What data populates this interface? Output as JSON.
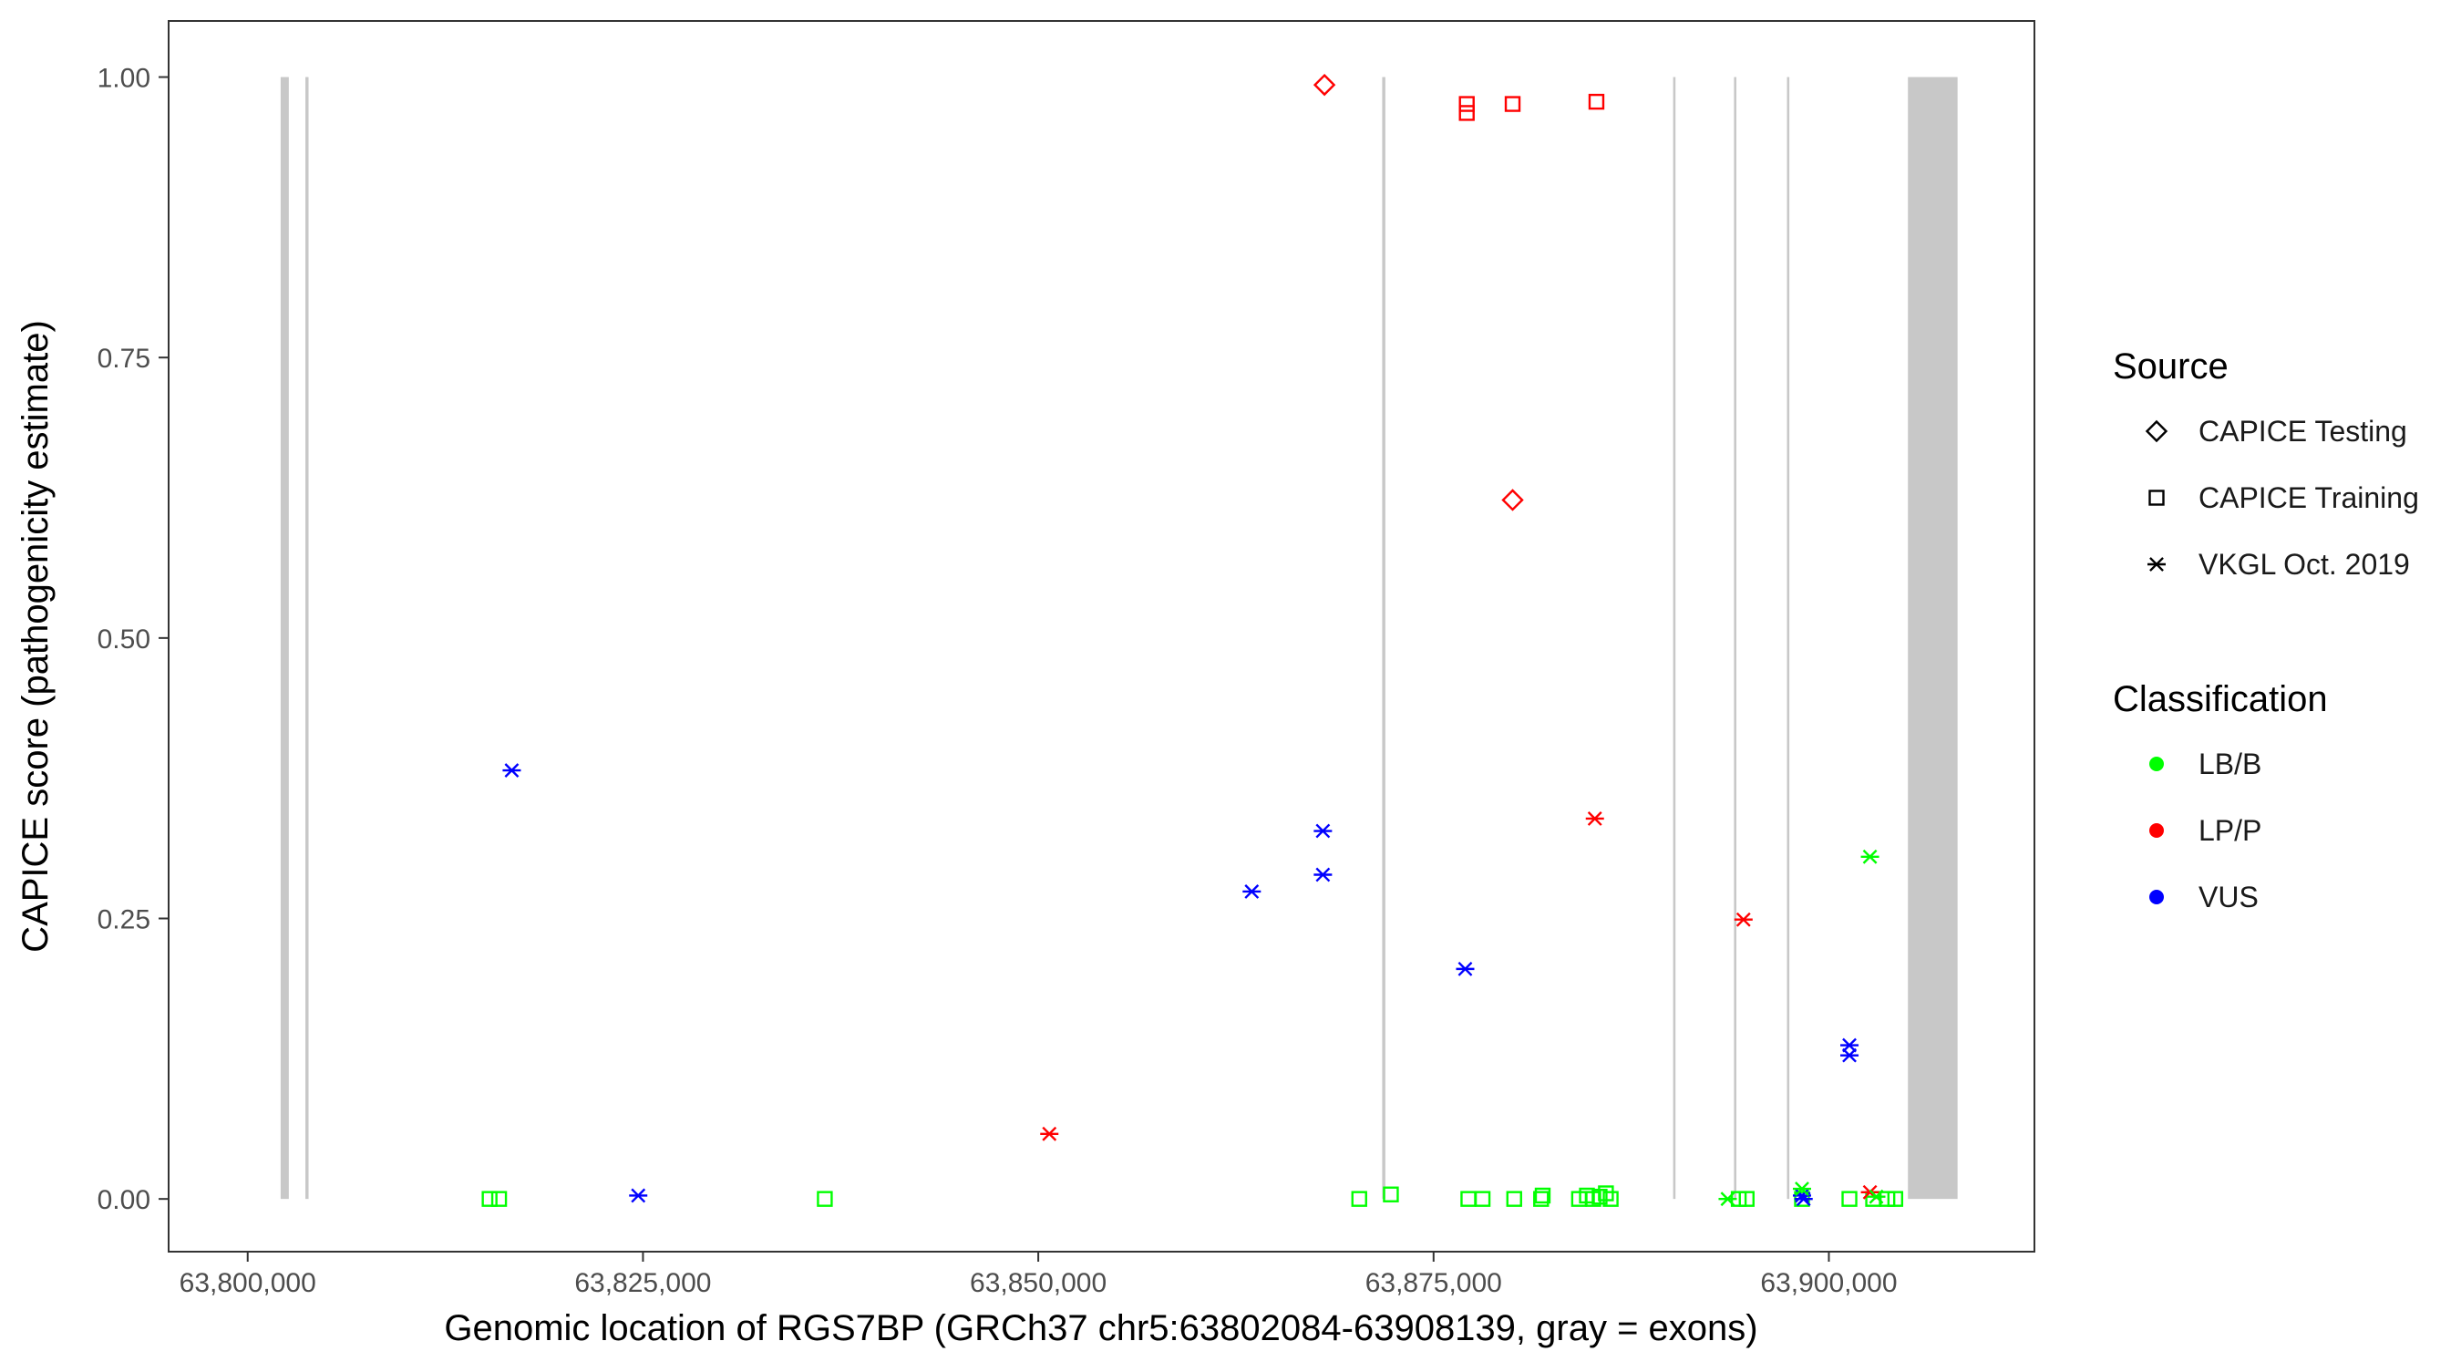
{
  "chart_data": {
    "type": "scatter",
    "title": "",
    "xlabel": "Genomic location of RGS7BP (GRCh37 chr5:63802084-63908139, gray = exons)",
    "ylabel": "CAPICE score (pathogenicity estimate)",
    "xlim": [
      63795000,
      63913000
    ],
    "ylim": [
      -0.047,
      1.05
    ],
    "x_ticks": [
      63800000,
      63825000,
      63850000,
      63875000,
      63900000
    ],
    "x_tick_labels": [
      "63,800,000",
      "63,825,000",
      "63,850,000",
      "63,875,000",
      "63,900,000"
    ],
    "y_ticks": [
      0,
      0.25,
      0.5,
      0.75,
      1.0
    ],
    "y_tick_labels": [
      "0.00",
      "0.25",
      "0.50",
      "0.75",
      "1.00"
    ],
    "grid": false,
    "legend_position": "right",
    "exons": [
      {
        "start": 63802084,
        "end": 63802600
      },
      {
        "start": 63803650,
        "end": 63803850
      },
      {
        "start": 63871750,
        "end": 63871950
      },
      {
        "start": 63890150,
        "end": 63890300
      },
      {
        "start": 63894000,
        "end": 63894150
      },
      {
        "start": 63897350,
        "end": 63897500
      },
      {
        "start": 63905000,
        "end": 63908139
      }
    ],
    "legends": {
      "source": {
        "title": "Source",
        "items": [
          {
            "label": "CAPICE Testing",
            "shape": "diamond"
          },
          {
            "label": "CAPICE Training",
            "shape": "square"
          },
          {
            "label": "VKGL Oct. 2019",
            "shape": "asterisk"
          }
        ]
      },
      "classification": {
        "title": "Classification",
        "items": [
          {
            "label": "LB/B",
            "color": "#00ff00"
          },
          {
            "label": "LP/P",
            "color": "#ff0000"
          },
          {
            "label": "VUS",
            "color": "#0000ff"
          }
        ]
      }
    },
    "colors": {
      "LB/B": "#00ff00",
      "LP/P": "#ff0000",
      "VUS": "#0000ff",
      "exon": "#c8c8c8"
    },
    "series": [
      {
        "name": "CAPICE Testing",
        "shape": "diamond",
        "points": [
          {
            "x": 63868100,
            "y": 0.993,
            "cls": "LP/P"
          },
          {
            "x": 63880000,
            "y": 0.623,
            "cls": "LP/P"
          }
        ]
      },
      {
        "name": "CAPICE Training",
        "shape": "square",
        "points": [
          {
            "x": 63877100,
            "y": 0.976,
            "cls": "LP/P"
          },
          {
            "x": 63877100,
            "y": 0.968,
            "cls": "LP/P"
          },
          {
            "x": 63880000,
            "y": 0.976,
            "cls": "LP/P"
          },
          {
            "x": 63885300,
            "y": 0.978,
            "cls": "LP/P"
          },
          {
            "x": 63815300,
            "y": 0.0,
            "cls": "LB/B"
          },
          {
            "x": 63815900,
            "y": 0.0,
            "cls": "LB/B"
          },
          {
            "x": 63836500,
            "y": 0.0,
            "cls": "LB/B"
          },
          {
            "x": 63870300,
            "y": 0.0,
            "cls": "LB/B"
          },
          {
            "x": 63872300,
            "y": 0.004,
            "cls": "LB/B"
          },
          {
            "x": 63877200,
            "y": 0.0,
            "cls": "LB/B"
          },
          {
            "x": 63878100,
            "y": 0.0,
            "cls": "LB/B"
          },
          {
            "x": 63880100,
            "y": 0.0,
            "cls": "LB/B"
          },
          {
            "x": 63881800,
            "y": 0.0,
            "cls": "LB/B"
          },
          {
            "x": 63881900,
            "y": 0.003,
            "cls": "LB/B"
          },
          {
            "x": 63884200,
            "y": 0.0,
            "cls": "LB/B"
          },
          {
            "x": 63884700,
            "y": 0.003,
            "cls": "LB/B"
          },
          {
            "x": 63885100,
            "y": 0.0,
            "cls": "LB/B"
          },
          {
            "x": 63885500,
            "y": 0.002,
            "cls": "LB/B"
          },
          {
            "x": 63885900,
            "y": 0.005,
            "cls": "LB/B"
          },
          {
            "x": 63886200,
            "y": 0.0,
            "cls": "LB/B"
          },
          {
            "x": 63894300,
            "y": 0.0,
            "cls": "LB/B"
          },
          {
            "x": 63894800,
            "y": 0.0,
            "cls": "LB/B"
          },
          {
            "x": 63898300,
            "y": 0.0,
            "cls": "LB/B"
          },
          {
            "x": 63901300,
            "y": 0.0,
            "cls": "LB/B"
          },
          {
            "x": 63902800,
            "y": 0.0,
            "cls": "LB/B"
          },
          {
            "x": 63903700,
            "y": 0.0,
            "cls": "LB/B"
          },
          {
            "x": 63904200,
            "y": 0.0,
            "cls": "LB/B"
          }
        ]
      },
      {
        "name": "VKGL Oct. 2019",
        "shape": "asterisk",
        "points": [
          {
            "x": 63816700,
            "y": 0.382,
            "cls": "VUS"
          },
          {
            "x": 63824700,
            "y": 0.003,
            "cls": "VUS"
          },
          {
            "x": 63863500,
            "y": 0.274,
            "cls": "VUS"
          },
          {
            "x": 63868000,
            "y": 0.328,
            "cls": "VUS"
          },
          {
            "x": 63868000,
            "y": 0.289,
            "cls": "VUS"
          },
          {
            "x": 63877000,
            "y": 0.205,
            "cls": "VUS"
          },
          {
            "x": 63898300,
            "y": 0.003,
            "cls": "VUS"
          },
          {
            "x": 63898400,
            "y": 0.0,
            "cls": "VUS"
          },
          {
            "x": 63901300,
            "y": 0.137,
            "cls": "VUS"
          },
          {
            "x": 63901300,
            "y": 0.128,
            "cls": "VUS"
          },
          {
            "x": 63850700,
            "y": 0.058,
            "cls": "LP/P"
          },
          {
            "x": 63885200,
            "y": 0.339,
            "cls": "LP/P"
          },
          {
            "x": 63894600,
            "y": 0.249,
            "cls": "LP/P"
          },
          {
            "x": 63902600,
            "y": 0.006,
            "cls": "LP/P"
          },
          {
            "x": 63902600,
            "y": 0.305,
            "cls": "LB/B"
          },
          {
            "x": 63893600,
            "y": 0.0,
            "cls": "LB/B"
          },
          {
            "x": 63898300,
            "y": 0.009,
            "cls": "LB/B"
          },
          {
            "x": 63903000,
            "y": 0.002,
            "cls": "LB/B"
          }
        ]
      }
    ]
  }
}
